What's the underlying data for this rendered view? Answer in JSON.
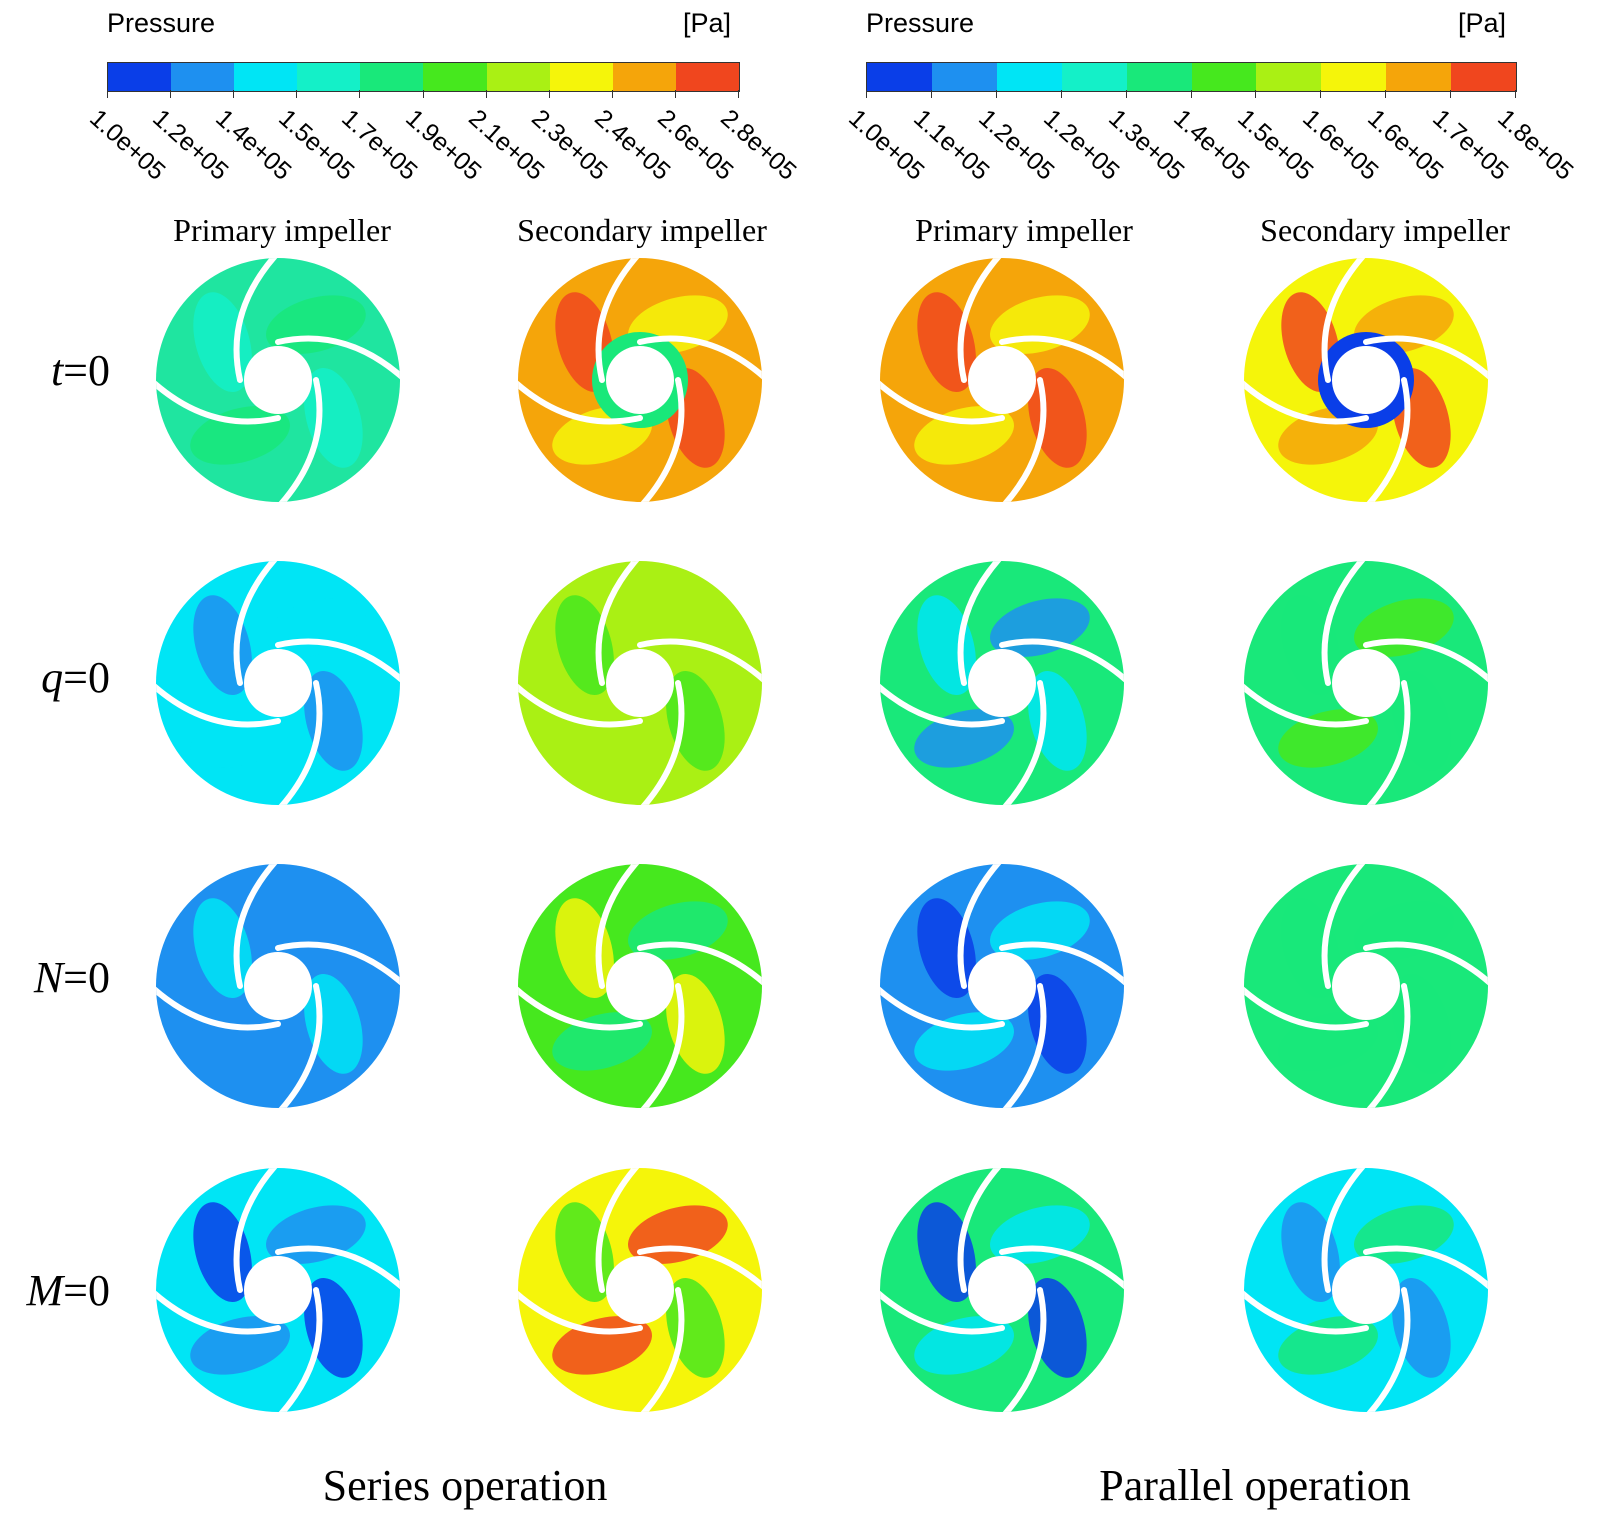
{
  "legends": [
    {
      "title": "Pressure",
      "unit": "[Pa]",
      "ticks": [
        "1.0e+05",
        "1.2e+05",
        "1.4e+05",
        "1.5e+05",
        "1.7e+05",
        "1.9e+05",
        "2.1e+05",
        "2.3e+05",
        "2.4e+05",
        "2.6e+05",
        "2.8e+05"
      ]
    },
    {
      "title": "Pressure",
      "unit": "[Pa]",
      "ticks": [
        "1.0e+05",
        "1.1e+05",
        "1.2e+05",
        "1.2e+05",
        "1.3e+05",
        "1.4e+05",
        "1.5e+05",
        "1.6e+05",
        "1.6e+05",
        "1.7e+05",
        "1.8e+05"
      ]
    }
  ],
  "palette": [
    "#0a3ee8",
    "#1e90f0",
    "#00e5f5",
    "#14f0c8",
    "#19e87a",
    "#46e81e",
    "#aaf014",
    "#f5f50a",
    "#f5a50a",
    "#f0461e"
  ],
  "column_headers": [
    "Primary impeller",
    "Secondary impeller",
    "Primary impeller",
    "Secondary impeller"
  ],
  "row_labels": [
    {
      "var": "t",
      "rest": "=0"
    },
    {
      "var": "q",
      "rest": "=0"
    },
    {
      "var": "N",
      "rest": "=0"
    },
    {
      "var": "M",
      "rest": "=0"
    }
  ],
  "operations": [
    "Series operation",
    "Parallel operation"
  ],
  "impellers": [
    [
      {
        "base": "#1fe5a0",
        "accents": [
          "#14f0c8",
          "#19e87a"
        ],
        "hub": "#ffffff"
      },
      {
        "base": "#f5a50a",
        "accents": [
          "#f0461e",
          "#f5f50a"
        ],
        "hub": "#19e87a"
      },
      {
        "base": "#f5a50a",
        "accents": [
          "#f0461e",
          "#f5f50a"
        ],
        "hub": "#ffffff"
      },
      {
        "base": "#f5f50a",
        "accents": [
          "#f0461e",
          "#f5a50a"
        ],
        "hub": "#0a3ee8"
      }
    ],
    [
      {
        "base": "#00e5f5",
        "accents": [
          "#1e90f0",
          "#00e5f5"
        ],
        "hub": "#ffffff"
      },
      {
        "base": "#aaf014",
        "accents": [
          "#46e81e",
          "#aaf014"
        ],
        "hub": "#ffffff"
      },
      {
        "base": "#19e87a",
        "accents": [
          "#00e5f5",
          "#1e90f0"
        ],
        "hub": "#ffffff"
      },
      {
        "base": "#19e87a",
        "accents": [
          "#19e87a",
          "#46e81e"
        ],
        "hub": "#ffffff"
      }
    ],
    [
      {
        "base": "#1e90f0",
        "accents": [
          "#00e5f5",
          "#1e90f0"
        ],
        "hub": "#ffffff"
      },
      {
        "base": "#46e81e",
        "accents": [
          "#f5f50a",
          "#19e87a"
        ],
        "hub": "#ffffff"
      },
      {
        "base": "#1e90f0",
        "accents": [
          "#0a3ee8",
          "#00e5f5"
        ],
        "hub": "#ffffff"
      },
      {
        "base": "#19e87a",
        "accents": [
          "#19e87a",
          "#19e87a"
        ],
        "hub": "#ffffff"
      }
    ],
    [
      {
        "base": "#00e5f5",
        "accents": [
          "#0a3ee8",
          "#1e90f0"
        ],
        "hub": "#ffffff"
      },
      {
        "base": "#f5f50a",
        "accents": [
          "#46e81e",
          "#f0461e"
        ],
        "hub": "#ffffff"
      },
      {
        "base": "#19e87a",
        "accents": [
          "#0a3ee8",
          "#00e5f5"
        ],
        "hub": "#ffffff"
      },
      {
        "base": "#00e5f5",
        "accents": [
          "#1e90f0",
          "#19e87a"
        ],
        "hub": "#ffffff"
      }
    ]
  ]
}
